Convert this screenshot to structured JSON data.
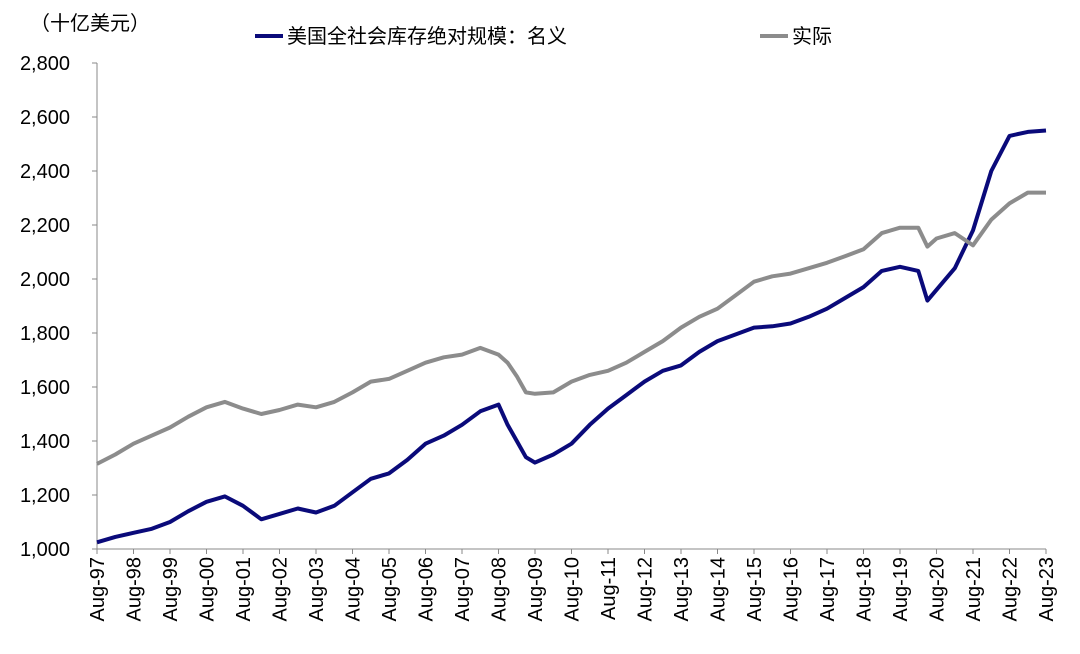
{
  "chart_data": {
    "type": "line",
    "y_label": "（十亿美元）",
    "x": [
      "Aug-97",
      "Feb-98",
      "Aug-98",
      "Feb-99",
      "Aug-99",
      "Feb-00",
      "Aug-00",
      "Feb-01",
      "Aug-01",
      "Feb-02",
      "Aug-02",
      "Feb-03",
      "Aug-03",
      "Feb-04",
      "Aug-04",
      "Feb-05",
      "Aug-05",
      "Feb-06",
      "Aug-06",
      "Feb-07",
      "Aug-07",
      "Feb-08",
      "Aug-08",
      "Nov-08",
      "Feb-09",
      "May-09",
      "Aug-09",
      "Feb-10",
      "Aug-10",
      "Feb-11",
      "Aug-11",
      "Feb-12",
      "Aug-12",
      "Feb-13",
      "Aug-13",
      "Feb-14",
      "Aug-14",
      "Feb-15",
      "Aug-15",
      "Feb-16",
      "Aug-16",
      "Feb-17",
      "Aug-17",
      "Feb-18",
      "Aug-18",
      "Feb-19",
      "Aug-19",
      "Feb-20",
      "May-20",
      "Aug-20",
      "Feb-21",
      "Aug-21",
      "Feb-22",
      "Aug-22",
      "Feb-23",
      "Aug-23"
    ],
    "series": [
      {
        "name": "美国全社会库存绝对规模：名义",
        "color": "#0a0a7a",
        "values": [
          1025,
          1045,
          1060,
          1075,
          1100,
          1140,
          1175,
          1195,
          1160,
          1110,
          1130,
          1150,
          1135,
          1160,
          1210,
          1260,
          1280,
          1330,
          1390,
          1420,
          1460,
          1510,
          1535,
          1460,
          1400,
          1340,
          1320,
          1350,
          1390,
          1460,
          1520,
          1570,
          1620,
          1660,
          1680,
          1730,
          1770,
          1795,
          1820,
          1825,
          1835,
          1860,
          1890,
          1930,
          1970,
          2030,
          2045,
          2030,
          1920,
          1960,
          2040,
          2180,
          2400,
          2530,
          2545,
          2550
        ]
      },
      {
        "name": "实际",
        "color": "#8c8c8c",
        "values": [
          1315,
          1350,
          1390,
          1420,
          1450,
          1490,
          1525,
          1545,
          1520,
          1500,
          1515,
          1535,
          1525,
          1545,
          1580,
          1620,
          1630,
          1660,
          1690,
          1710,
          1720,
          1745,
          1720,
          1690,
          1640,
          1580,
          1575,
          1580,
          1620,
          1645,
          1660,
          1690,
          1730,
          1770,
          1820,
          1860,
          1890,
          1940,
          1990,
          2010,
          2020,
          2040,
          2060,
          2085,
          2110,
          2170,
          2190,
          2190,
          2120,
          2150,
          2170,
          2125,
          2220,
          2280,
          2320,
          2320
        ]
      }
    ],
    "xticks": [
      "Aug-97",
      "Aug-98",
      "Aug-99",
      "Aug-00",
      "Aug-01",
      "Aug-02",
      "Aug-03",
      "Aug-04",
      "Aug-05",
      "Aug-06",
      "Aug-07",
      "Aug-08",
      "Aug-09",
      "Aug-10",
      "Aug-11",
      "Aug-12",
      "Aug-13",
      "Aug-14",
      "Aug-15",
      "Aug-16",
      "Aug-17",
      "Aug-18",
      "Aug-19",
      "Aug-20",
      "Aug-21",
      "Aug-22",
      "Aug-23"
    ],
    "ylim": [
      1000,
      2800
    ],
    "yticks": [
      {
        "value": 1000,
        "label": "1,000"
      },
      {
        "value": 1200,
        "label": "1,200"
      },
      {
        "value": 1400,
        "label": "1,400"
      },
      {
        "value": 1600,
        "label": "1,600"
      },
      {
        "value": 1800,
        "label": "1,800"
      },
      {
        "value": 2000,
        "label": "2,000"
      },
      {
        "value": 2200,
        "label": "2,200"
      },
      {
        "value": 2400,
        "label": "2,400"
      },
      {
        "value": 2600,
        "label": "2,600"
      },
      {
        "value": 2800,
        "label": "2,800"
      }
    ]
  }
}
